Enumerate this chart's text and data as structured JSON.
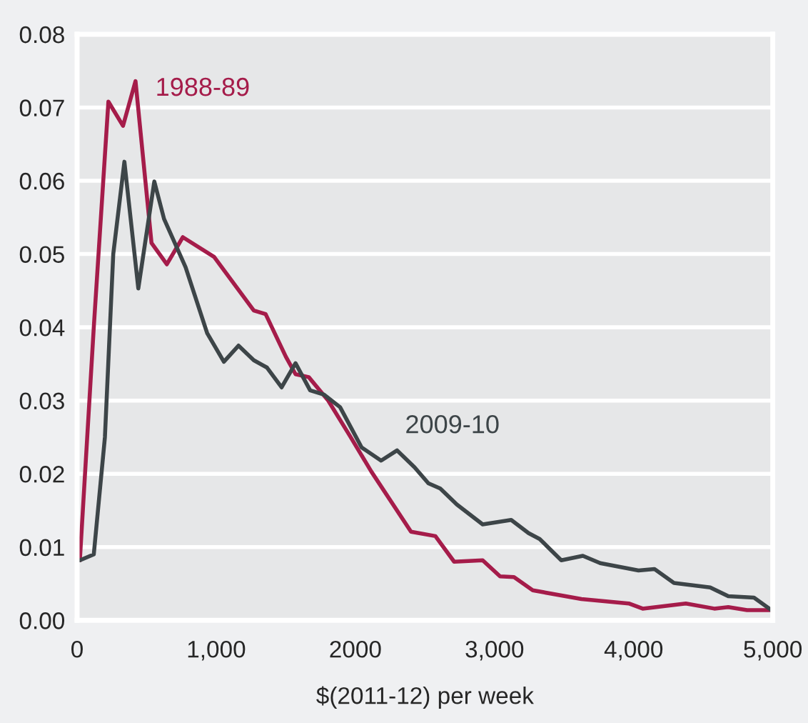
{
  "chart_data": {
    "type": "line",
    "xlabel": "$(2011-12) per week",
    "xlim": [
      0,
      5000
    ],
    "ylim": [
      0,
      0.08
    ],
    "xticks": [
      0,
      {
        "value": 1000,
        "label": "1,000"
      },
      2000,
      {
        "value": 3000,
        "label": "3,000"
      },
      {
        "value": 4000,
        "label": "4,000"
      },
      {
        "value": 5000,
        "label": "5,000"
      }
    ],
    "yticks": [
      {
        "value": 0,
        "label": "0.00"
      },
      {
        "value": 0.01,
        "label": "0.01"
      },
      {
        "value": 0.02,
        "label": "0.02"
      },
      {
        "value": 0.03,
        "label": "0.03"
      },
      {
        "value": 0.04,
        "label": "0.04"
      },
      {
        "value": 0.05,
        "label": "0.05"
      },
      {
        "value": 0.06,
        "label": "0.06"
      },
      {
        "value": 0.07,
        "label": "0.07"
      },
      {
        "value": 0.08,
        "label": "0.08"
      }
    ],
    "grid": "y",
    "legend": false,
    "marker": "none",
    "line_style": "solid",
    "series": [
      {
        "name": "1988-89",
        "color": "#a51c4a",
        "x": [
          20,
          120,
          225,
          330,
          420,
          535,
          645,
          760,
          985,
          1270,
          1355,
          1500,
          1570,
          1665,
          1805,
          1960,
          2115,
          2400,
          2575,
          2710,
          2915,
          3040,
          3140,
          3275,
          3625,
          3965,
          4065,
          4375,
          4580,
          4680,
          4815,
          4990
        ],
        "values": [
          0.0082,
          0.04,
          0.0708,
          0.0675,
          0.0736,
          0.0515,
          0.0486,
          0.0523,
          0.0496,
          0.0423,
          0.0418,
          0.036,
          0.0336,
          0.0332,
          0.03,
          0.0252,
          0.0203,
          0.0121,
          0.0115,
          0.008,
          0.0082,
          0.006,
          0.0059,
          0.0041,
          0.0029,
          0.0023,
          0.0016,
          0.0023,
          0.0016,
          0.0018,
          0.0014,
          0.0014
        ]
      },
      {
        "name": "2009-10",
        "color": "#3d4548",
        "x": [
          20,
          120,
          200,
          260,
          340,
          440,
          555,
          625,
          780,
          935,
          1055,
          1160,
          1270,
          1365,
          1470,
          1570,
          1675,
          1775,
          1890,
          2045,
          2185,
          2300,
          2425,
          2525,
          2610,
          2730,
          2915,
          3120,
          3245,
          3325,
          3480,
          3635,
          3760,
          4035,
          4150,
          4290,
          4550,
          4680,
          4865,
          4990
        ],
        "values": [
          0.0082,
          0.009,
          0.025,
          0.05,
          0.0626,
          0.0453,
          0.0599,
          0.0548,
          0.0482,
          0.0392,
          0.0353,
          0.0375,
          0.0355,
          0.0345,
          0.0318,
          0.0351,
          0.0314,
          0.0308,
          0.0291,
          0.0236,
          0.0218,
          0.0232,
          0.0209,
          0.0187,
          0.018,
          0.0158,
          0.0131,
          0.0137,
          0.0119,
          0.0111,
          0.0082,
          0.0088,
          0.0078,
          0.0068,
          0.007,
          0.0051,
          0.0045,
          0.0033,
          0.0031,
          0.0014
        ]
      }
    ]
  }
}
